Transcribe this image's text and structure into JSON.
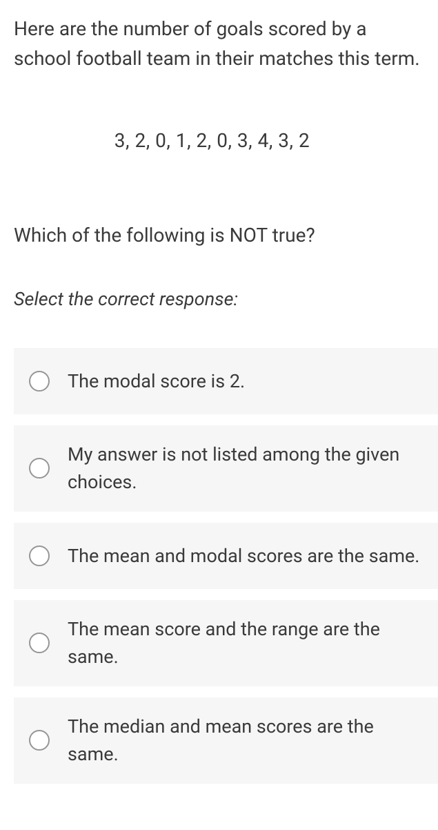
{
  "question": {
    "intro": "Here are the number of goals scored by a school football team in their matches this term.",
    "data_line": "3,  2,  0,  1,  2,  0,  3,  4,  3,  2",
    "prompt": "Which of the following is NOT true?",
    "instruction": "Select the correct response:"
  },
  "options": [
    {
      "label": "The modal score is 2."
    },
    {
      "label": "My answer is not listed among the given choices."
    },
    {
      "label": "The mean and modal scores are the same."
    },
    {
      "label": "The mean score and the range are the same."
    },
    {
      "label": "The median and mean scores are the same."
    }
  ],
  "style": {
    "bg_color": "#ffffff",
    "option_bg": "#f6f6f6",
    "text_color": "#3a3a3a",
    "radio_border": "#969696",
    "font_size_body": 28,
    "font_size_option": 27
  }
}
